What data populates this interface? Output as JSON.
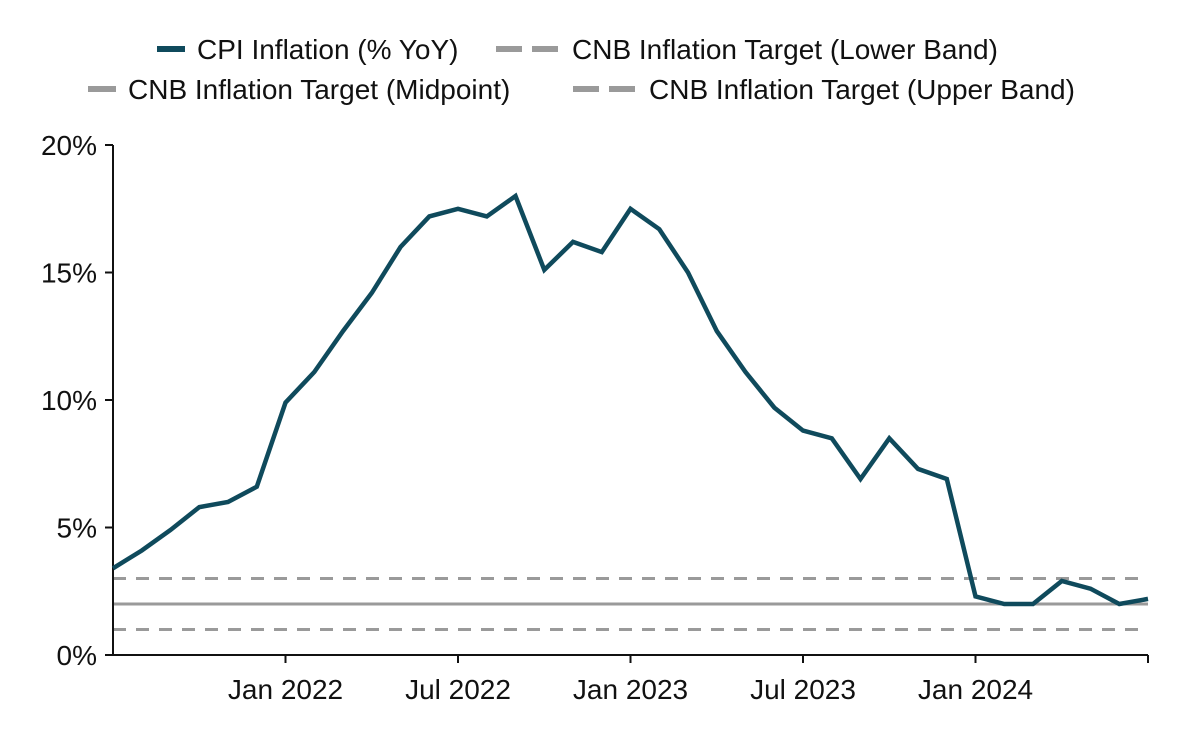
{
  "chart_data": {
    "type": "line",
    "title": "",
    "xlabel": "",
    "ylabel": "",
    "ylim": [
      0,
      20
    ],
    "yticks": [
      {
        "value": 0,
        "label": "0%"
      },
      {
        "value": 5,
        "label": "5%"
      },
      {
        "value": 10,
        "label": "10%"
      },
      {
        "value": 15,
        "label": "15%"
      },
      {
        "value": 20,
        "label": "20%"
      }
    ],
    "xticks": [
      {
        "date": "2022-01",
        "label": "Jan 2022"
      },
      {
        "date": "2022-07",
        "label": "Jul 2022"
      },
      {
        "date": "2023-01",
        "label": "Jan 2023"
      },
      {
        "date": "2023-07",
        "label": "Jul 2023"
      },
      {
        "date": "2024-01",
        "label": "Jan 2024"
      }
    ],
    "xlim": [
      "2021-07",
      "2024-07"
    ],
    "grid": false,
    "legend_position": "top",
    "series": [
      {
        "name": "CPI Inflation (% YoY)",
        "color": "#0f4a5c",
        "style": "solid",
        "x": [
          "2021-07",
          "2021-08",
          "2021-09",
          "2021-10",
          "2021-11",
          "2021-12",
          "2022-01",
          "2022-02",
          "2022-03",
          "2022-04",
          "2022-05",
          "2022-06",
          "2022-07",
          "2022-08",
          "2022-09",
          "2022-10",
          "2022-11",
          "2022-12",
          "2023-01",
          "2023-02",
          "2023-03",
          "2023-04",
          "2023-05",
          "2023-06",
          "2023-07",
          "2023-08",
          "2023-09",
          "2023-10",
          "2023-11",
          "2023-12",
          "2024-01",
          "2024-02",
          "2024-03",
          "2024-04",
          "2024-05",
          "2024-06",
          "2024-07"
        ],
        "values": [
          3.4,
          4.1,
          4.9,
          5.8,
          6.0,
          6.6,
          9.9,
          11.1,
          12.7,
          14.2,
          16.0,
          17.2,
          17.5,
          17.2,
          18.0,
          15.1,
          16.2,
          15.8,
          17.5,
          16.7,
          15.0,
          12.7,
          11.1,
          9.7,
          8.8,
          8.5,
          6.9,
          8.5,
          7.3,
          6.9,
          2.3,
          2.0,
          2.0,
          2.9,
          2.6,
          2.0,
          2.2
        ]
      },
      {
        "name": "CNB Inflation Target (Lower Band)",
        "color": "#9a9a9a",
        "style": "dashed",
        "value": 1
      },
      {
        "name": "CNB Inflation Target (Midpoint)",
        "color": "#9a9a9a",
        "style": "solid",
        "value": 2
      },
      {
        "name": "CNB Inflation Target (Upper Band)",
        "color": "#9a9a9a",
        "style": "dashed",
        "value": 3
      }
    ]
  }
}
